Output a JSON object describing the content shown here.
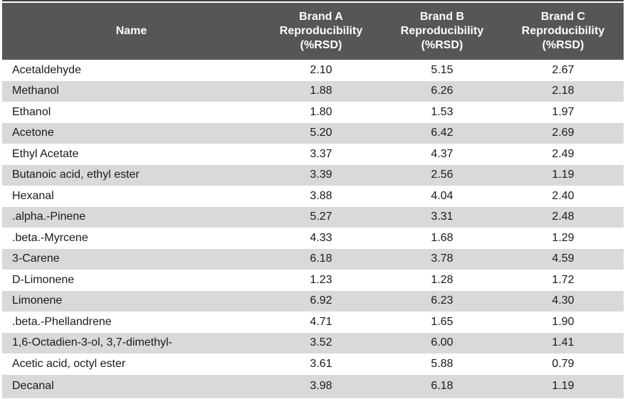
{
  "table": {
    "columns": [
      {
        "label": "Name"
      },
      {
        "label": "Brand A\nReproducibility\n(%RSD)"
      },
      {
        "label": "Brand B\nReproducibility\n(%RSD)"
      },
      {
        "label": "Brand C\nReproducibility\n(%RSD)"
      }
    ],
    "rows": [
      {
        "name": "Acetaldehyde",
        "brand_a": "2.10",
        "brand_b": "5.15",
        "brand_c": "2.67"
      },
      {
        "name": "Methanol",
        "brand_a": "1.88",
        "brand_b": "6.26",
        "brand_c": "2.18"
      },
      {
        "name": "Ethanol",
        "brand_a": "1.80",
        "brand_b": "1.53",
        "brand_c": "1.97"
      },
      {
        "name": "Acetone",
        "brand_a": "5.20",
        "brand_b": "6.42",
        "brand_c": "2.69"
      },
      {
        "name": "Ethyl Acetate",
        "brand_a": "3.37",
        "brand_b": "4.37",
        "brand_c": "2.49"
      },
      {
        "name": "Butanoic acid, ethyl ester",
        "brand_a": "3.39",
        "brand_b": "2.56",
        "brand_c": "1.19"
      },
      {
        "name": "Hexanal",
        "brand_a": "3.88",
        "brand_b": "4.04",
        "brand_c": "2.40"
      },
      {
        "name": ".alpha.-Pinene",
        "brand_a": "5.27",
        "brand_b": "3.31",
        "brand_c": "2.48"
      },
      {
        "name": ".beta.-Myrcene",
        "brand_a": "4.33",
        "brand_b": "1.68",
        "brand_c": "1.29"
      },
      {
        "name": "3-Carene",
        "brand_a": "6.18",
        "brand_b": "3.78",
        "brand_c": "4.59"
      },
      {
        "name": "D-Limonene",
        "brand_a": "1.23",
        "brand_b": "1.28",
        "brand_c": "1.72"
      },
      {
        "name": "Limonene",
        "brand_a": "6.92",
        "brand_b": "6.23",
        "brand_c": "4.30"
      },
      {
        "name": ".beta.-Phellandrene",
        "brand_a": "4.71",
        "brand_b": "1.65",
        "brand_c": "1.90"
      },
      {
        "name": "1,6-Octadien-3-ol, 3,7-dimethyl-",
        "brand_a": "3.52",
        "brand_b": "6.00",
        "brand_c": "1.41"
      },
      {
        "name": "Acetic acid, octyl ester",
        "brand_a": "3.61",
        "brand_b": "5.88",
        "brand_c": "0.79"
      },
      {
        "name": "Decanal",
        "brand_a": "3.98",
        "brand_b": "6.18",
        "brand_c": "1.19"
      }
    ]
  },
  "colors": {
    "header_bg": "#565656",
    "header_text": "#ffffff",
    "row_bg": "#ffffff",
    "row_alt_bg": "#d9d9d9",
    "body_text": "#1a1a1a",
    "top_rule": "#404040"
  },
  "chart_data": {
    "type": "table",
    "title": "",
    "columns": [
      "Name",
      "Brand A Reproducibility (%RSD)",
      "Brand B Reproducibility (%RSD)",
      "Brand C Reproducibility (%RSD)"
    ],
    "rows": [
      [
        "Acetaldehyde",
        2.1,
        5.15,
        2.67
      ],
      [
        "Methanol",
        1.88,
        6.26,
        2.18
      ],
      [
        "Ethanol",
        1.8,
        1.53,
        1.97
      ],
      [
        "Acetone",
        5.2,
        6.42,
        2.69
      ],
      [
        "Ethyl Acetate",
        3.37,
        4.37,
        2.49
      ],
      [
        "Butanoic acid, ethyl ester",
        3.39,
        2.56,
        1.19
      ],
      [
        "Hexanal",
        3.88,
        4.04,
        2.4
      ],
      [
        ".alpha.-Pinene",
        5.27,
        3.31,
        2.48
      ],
      [
        ".beta.-Myrcene",
        4.33,
        1.68,
        1.29
      ],
      [
        "3-Carene",
        6.18,
        3.78,
        4.59
      ],
      [
        "D-Limonene",
        1.23,
        1.28,
        1.72
      ],
      [
        "Limonene",
        6.92,
        6.23,
        4.3
      ],
      [
        ".beta.-Phellandrene",
        4.71,
        1.65,
        1.9
      ],
      [
        "1,6-Octadien-3-ol, 3,7-dimethyl-",
        3.52,
        6.0,
        1.41
      ],
      [
        "Acetic acid, octyl ester",
        3.61,
        5.88,
        0.79
      ],
      [
        "Decanal",
        3.98,
        6.18,
        1.19
      ]
    ],
    "layout": {
      "header_background": "#565656",
      "alternating_row_background": "#d9d9d9",
      "value_columns_aligned": "center",
      "name_column_aligned": "left"
    }
  }
}
